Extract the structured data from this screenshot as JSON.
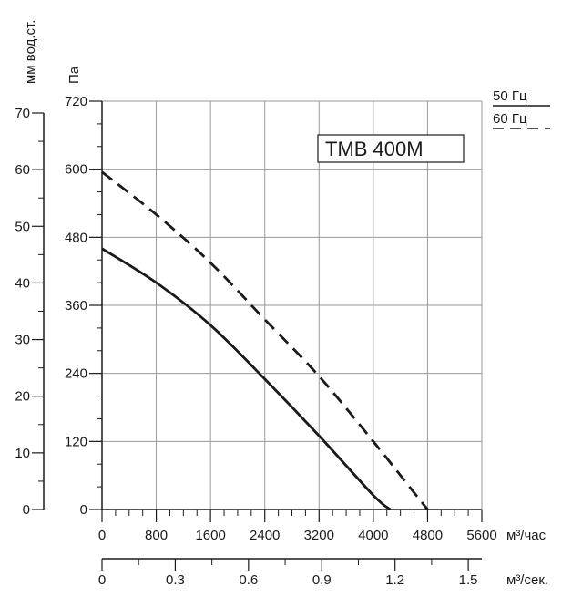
{
  "chart_data": {
    "type": "line",
    "title": "TMB 400M",
    "ylabel_pa": "Па",
    "ylabel_mm": "мм вод.ст.",
    "xlabel_hour": "м³/час",
    "xlabel_sec": "м³/сек.",
    "xlim": [
      0,
      5600
    ],
    "ylim": [
      0,
      720
    ],
    "grid": true,
    "legend_position": "top-right",
    "x_ticks": [
      "0",
      "800",
      "1600",
      "2400",
      "3200",
      "4000",
      "4800",
      "5600"
    ],
    "y_ticks_pa": [
      "0",
      "120",
      "240",
      "360",
      "480",
      "600",
      "720"
    ],
    "y_ticks_mm": [
      "0",
      "10",
      "20",
      "30",
      "40",
      "50",
      "60",
      "70"
    ],
    "x2_ticks": [
      "0",
      "0.3",
      "0.6",
      "0.9",
      "1.2",
      "1.5"
    ],
    "series": [
      {
        "name": "50 Гц",
        "style": "solid",
        "x": [
          0,
          800,
          1600,
          2400,
          3200,
          4000,
          4250
        ],
        "y": [
          460,
          400,
          325,
          230,
          130,
          25,
          0
        ]
      },
      {
        "name": "60 Гц",
        "style": "dashed",
        "x": [
          0,
          800,
          1600,
          2400,
          3200,
          4000,
          4600,
          4800
        ],
        "y": [
          595,
          520,
          435,
          335,
          235,
          120,
          30,
          0
        ]
      }
    ]
  },
  "colors": {
    "line": "#1a1a1a",
    "grid": "#9a9a9a",
    "axis": "#1a1a1a"
  }
}
